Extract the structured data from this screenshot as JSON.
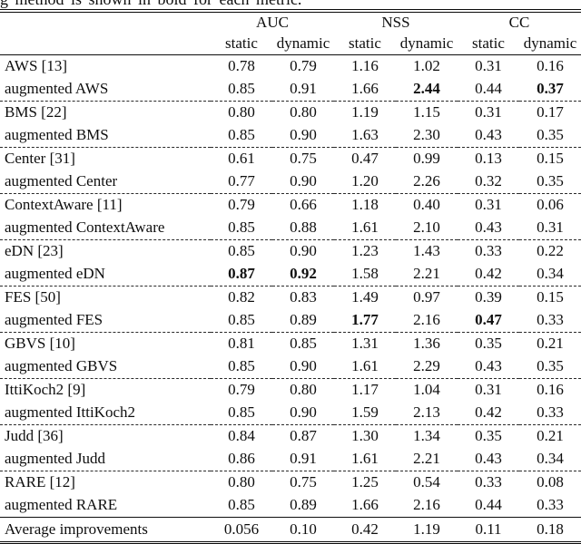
{
  "caption_fragment": "g method is shown in bold for each metric.",
  "header": {
    "metric_groups": [
      "AUC",
      "NSS",
      "CC"
    ],
    "sub_columns": [
      "static",
      "dynamic",
      "static",
      "dynamic",
      "static",
      "dynamic"
    ]
  },
  "table": {
    "rows": [
      {
        "label": "AWS [13]",
        "values": [
          "0.78",
          "0.79",
          "1.16",
          "1.02",
          "0.31",
          "0.16"
        ],
        "bold": []
      },
      {
        "label": "augmented AWS",
        "values": [
          "0.85",
          "0.91",
          "1.66",
          "2.44",
          "0.44",
          "0.37"
        ],
        "bold": [
          3,
          5
        ],
        "group_end": true
      },
      {
        "label": "BMS [22]",
        "values": [
          "0.80",
          "0.80",
          "1.19",
          "1.15",
          "0.31",
          "0.17"
        ],
        "bold": []
      },
      {
        "label": "augmented BMS",
        "values": [
          "0.85",
          "0.90",
          "1.63",
          "2.30",
          "0.43",
          "0.35"
        ],
        "bold": [],
        "group_end": true
      },
      {
        "label": "Center [31]",
        "values": [
          "0.61",
          "0.75",
          "0.47",
          "0.99",
          "0.13",
          "0.15"
        ],
        "bold": []
      },
      {
        "label": "augmented Center",
        "values": [
          "0.77",
          "0.90",
          "1.20",
          "2.26",
          "0.32",
          "0.35"
        ],
        "bold": [],
        "group_end": true
      },
      {
        "label": "ContextAware [11]",
        "values": [
          "0.79",
          "0.66",
          "1.18",
          "0.40",
          "0.31",
          "0.06"
        ],
        "bold": []
      },
      {
        "label": "augmented ContextAware",
        "values": [
          "0.85",
          "0.88",
          "1.61",
          "2.10",
          "0.43",
          "0.31"
        ],
        "bold": [],
        "group_end": true
      },
      {
        "label": "eDN [23]",
        "values": [
          "0.85",
          "0.90",
          "1.23",
          "1.43",
          "0.33",
          "0.22"
        ],
        "bold": []
      },
      {
        "label": "augmented eDN",
        "values": [
          "0.87",
          "0.92",
          "1.58",
          "2.21",
          "0.42",
          "0.34"
        ],
        "bold": [
          0,
          1
        ],
        "group_end": true
      },
      {
        "label": "FES [50]",
        "values": [
          "0.82",
          "0.83",
          "1.49",
          "0.97",
          "0.39",
          "0.15"
        ],
        "bold": []
      },
      {
        "label": "augmented FES",
        "values": [
          "0.85",
          "0.89",
          "1.77",
          "2.16",
          "0.47",
          "0.33"
        ],
        "bold": [
          2,
          4
        ],
        "group_end": true
      },
      {
        "label": "GBVS [10]",
        "values": [
          "0.81",
          "0.85",
          "1.31",
          "1.36",
          "0.35",
          "0.21"
        ],
        "bold": []
      },
      {
        "label": "augmented GBVS",
        "values": [
          "0.85",
          "0.90",
          "1.61",
          "2.29",
          "0.43",
          "0.35"
        ],
        "bold": [],
        "group_end": true
      },
      {
        "label": "IttiKoch2 [9]",
        "values": [
          "0.79",
          "0.80",
          "1.17",
          "1.04",
          "0.31",
          "0.16"
        ],
        "bold": []
      },
      {
        "label": "augmented IttiKoch2",
        "values": [
          "0.85",
          "0.90",
          "1.59",
          "2.13",
          "0.42",
          "0.33"
        ],
        "bold": [],
        "group_end": true
      },
      {
        "label": "Judd [36]",
        "values": [
          "0.84",
          "0.87",
          "1.30",
          "1.34",
          "0.35",
          "0.21"
        ],
        "bold": []
      },
      {
        "label": "augmented Judd",
        "values": [
          "0.86",
          "0.91",
          "1.61",
          "2.21",
          "0.43",
          "0.34"
        ],
        "bold": [],
        "group_end": true
      },
      {
        "label": "RARE [12]",
        "values": [
          "0.80",
          "0.75",
          "1.25",
          "0.54",
          "0.33",
          "0.08"
        ],
        "bold": []
      },
      {
        "label": "augmented RARE",
        "values": [
          "0.85",
          "0.89",
          "1.66",
          "2.16",
          "0.44",
          "0.33"
        ],
        "bold": []
      }
    ],
    "footer": {
      "label": "Average improvements",
      "values": [
        "0.056",
        "0.10",
        "0.42",
        "1.19",
        "0.11",
        "0.18"
      ]
    }
  }
}
